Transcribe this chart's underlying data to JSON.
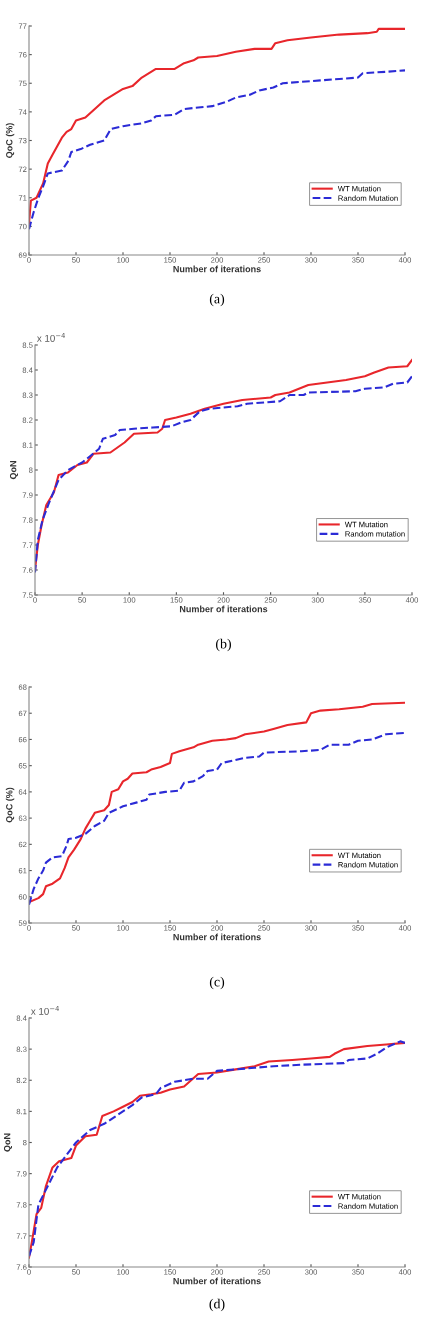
{
  "chart_data": [
    {
      "type": "line",
      "xlabel": "Number of iterations",
      "ylabel": "QoC (%)",
      "annotations": [
        "(a)"
      ],
      "xlim": [
        0,
        400
      ],
      "xticks": [
        0,
        50,
        100,
        150,
        200,
        250,
        300,
        350,
        400
      ],
      "ylim": [
        69,
        77
      ],
      "yticks": [
        69,
        70,
        71,
        72,
        73,
        74,
        75,
        76,
        77
      ],
      "legend": "lower right",
      "series": [
        {
          "name": "WT Mutation",
          "color": "#e8262b",
          "line_style": "solid",
          "x": [
            0,
            2,
            8,
            15,
            20,
            25,
            30,
            35,
            40,
            45,
            50,
            60,
            70,
            80,
            90,
            100,
            110,
            120,
            135,
            155,
            165,
            175,
            180,
            200,
            220,
            240,
            258,
            262,
            275,
            300,
            330,
            360,
            370,
            372,
            400
          ],
          "values": [
            70.1,
            70.9,
            71.0,
            71.5,
            72.2,
            72.5,
            72.8,
            73.1,
            73.3,
            73.4,
            73.7,
            73.8,
            74.1,
            74.4,
            74.6,
            74.8,
            74.9,
            75.2,
            75.5,
            75.5,
            75.7,
            75.8,
            75.9,
            75.95,
            76.1,
            76.2,
            76.2,
            76.4,
            76.5,
            76.6,
            76.7,
            76.75,
            76.8,
            76.9,
            76.9
          ]
        },
        {
          "name": "Random Mutation",
          "color": "#2b2bd6",
          "line_style": "dashed",
          "x": [
            0,
            5,
            10,
            15,
            20,
            35,
            42,
            45,
            55,
            65,
            80,
            87,
            100,
            120,
            130,
            135,
            155,
            165,
            180,
            195,
            210,
            220,
            235,
            245,
            260,
            270,
            290,
            310,
            330,
            350,
            355,
            380,
            400
          ],
          "values": [
            69.9,
            70.5,
            71.0,
            71.4,
            71.85,
            71.95,
            72.3,
            72.6,
            72.7,
            72.85,
            73.0,
            73.4,
            73.5,
            73.6,
            73.7,
            73.85,
            73.9,
            74.1,
            74.15,
            74.2,
            74.35,
            74.5,
            74.6,
            74.75,
            74.85,
            75.0,
            75.05,
            75.1,
            75.15,
            75.2,
            75.35,
            75.4,
            75.45
          ]
        }
      ]
    },
    {
      "type": "line",
      "xlabel": "Number of iterations",
      "ylabel": "QoN",
      "annotations": [
        "x 10$^{−4}$",
        "(b)"
      ],
      "xlim": [
        0,
        400
      ],
      "xticks": [
        0,
        50,
        100,
        150,
        200,
        250,
        300,
        350,
        400
      ],
      "ylim": [
        7.5,
        8.5
      ],
      "yticks": [
        7.5,
        7.6,
        7.7,
        7.8,
        7.9,
        8,
        8.1,
        8.2,
        8.3,
        8.4,
        8.5
      ],
      "legend": "lower right",
      "series": [
        {
          "name": "WT Mutation",
          "color": "#e8262b",
          "line_style": "solid",
          "x": [
            0,
            3,
            7,
            12,
            20,
            25,
            35,
            45,
            55,
            62,
            80,
            95,
            105,
            130,
            135,
            138,
            150,
            165,
            180,
            200,
            220,
            250,
            255,
            270,
            290,
            310,
            330,
            350,
            360,
            375,
            395,
            400
          ],
          "values": [
            7.6,
            7.7,
            7.78,
            7.86,
            7.91,
            7.98,
            7.99,
            8.02,
            8.03,
            8.065,
            8.07,
            8.11,
            8.145,
            8.15,
            8.165,
            8.2,
            8.21,
            8.225,
            8.245,
            8.265,
            8.28,
            8.29,
            8.3,
            8.31,
            8.34,
            8.35,
            8.36,
            8.375,
            8.39,
            8.41,
            8.415,
            8.44
          ]
        },
        {
          "name": "Random mutation",
          "color": "#2b2bd6",
          "line_style": "dashed",
          "x": [
            0,
            3,
            8,
            15,
            25,
            35,
            50,
            60,
            68,
            72,
            85,
            90,
            105,
            125,
            145,
            155,
            165,
            175,
            185,
            200,
            215,
            225,
            260,
            270,
            285,
            290,
            340,
            350,
            370,
            380,
            395,
            400
          ],
          "values": [
            7.59,
            7.72,
            7.8,
            7.87,
            7.96,
            8.0,
            8.03,
            8.06,
            8.085,
            8.125,
            8.14,
            8.16,
            8.165,
            8.17,
            8.175,
            8.19,
            8.2,
            8.235,
            8.245,
            8.25,
            8.255,
            8.265,
            8.275,
            8.3,
            8.3,
            8.31,
            8.315,
            8.325,
            8.33,
            8.345,
            8.35,
            8.375
          ]
        }
      ]
    },
    {
      "type": "line",
      "xlabel": "Number of iterations",
      "ylabel": "QoC (%)",
      "annotations": [
        "(c)"
      ],
      "xlim": [
        0,
        400
      ],
      "xticks": [
        0,
        50,
        100,
        150,
        200,
        250,
        300,
        350,
        400
      ],
      "ylim": [
        59,
        68
      ],
      "yticks": [
        59,
        60,
        61,
        62,
        63,
        64,
        65,
        66,
        67,
        68
      ],
      "legend": "lower right",
      "series": [
        {
          "name": "WT Mutation",
          "color": "#e8262b",
          "line_style": "solid",
          "x": [
            0,
            10,
            15,
            18,
            25,
            33,
            38,
            42,
            48,
            55,
            60,
            65,
            70,
            80,
            85,
            88,
            95,
            100,
            105,
            110,
            125,
            130,
            140,
            150,
            152,
            160,
            175,
            180,
            195,
            210,
            220,
            230,
            250,
            260,
            275,
            295,
            300,
            310,
            330,
            355,
            365,
            400
          ],
          "values": [
            59.8,
            59.95,
            60.1,
            60.4,
            60.5,
            60.7,
            61.1,
            61.5,
            61.8,
            62.2,
            62.6,
            62.9,
            63.2,
            63.3,
            63.5,
            64.0,
            64.1,
            64.4,
            64.5,
            64.7,
            64.75,
            64.85,
            64.95,
            65.1,
            65.45,
            65.55,
            65.7,
            65.8,
            65.95,
            66.0,
            66.05,
            66.2,
            66.3,
            66.4,
            66.55,
            66.65,
            67.0,
            67.1,
            67.15,
            67.25,
            67.35,
            67.4
          ]
        },
        {
          "name": "Random Mutation",
          "color": "#2b2bd6",
          "line_style": "dashed",
          "x": [
            0,
            5,
            10,
            15,
            18,
            25,
            35,
            40,
            42,
            50,
            60,
            70,
            80,
            85,
            100,
            115,
            125,
            128,
            145,
            160,
            165,
            175,
            185,
            190,
            200,
            205,
            230,
            245,
            250,
            290,
            310,
            320,
            340,
            350,
            365,
            380,
            400
          ],
          "values": [
            59.7,
            60.3,
            60.7,
            61.0,
            61.3,
            61.5,
            61.55,
            61.95,
            62.2,
            62.25,
            62.4,
            62.7,
            62.9,
            63.2,
            63.45,
            63.6,
            63.7,
            63.9,
            64.0,
            64.05,
            64.35,
            64.4,
            64.6,
            64.8,
            64.85,
            65.1,
            65.3,
            65.35,
            65.5,
            65.55,
            65.6,
            65.8,
            65.8,
            65.95,
            66.0,
            66.2,
            66.25
          ]
        }
      ]
    },
    {
      "type": "line",
      "xlabel": "Number of iterations",
      "ylabel": "QoN",
      "annotations": [
        "x 10$^{−4}$",
        "(d)"
      ],
      "xlim": [
        0,
        400
      ],
      "xticks": [
        0,
        50,
        100,
        150,
        200,
        250,
        300,
        350,
        400
      ],
      "ylim": [
        7.6,
        8.4
      ],
      "yticks": [
        7.6,
        7.7,
        7.8,
        7.9,
        8,
        8.1,
        8.2,
        8.3,
        8.4
      ],
      "legend": "lower right",
      "series": [
        {
          "name": "WT Mutation",
          "color": "#e8262b",
          "line_style": "solid",
          "x": [
            0,
            3,
            8,
            13,
            18,
            25,
            32,
            45,
            50,
            60,
            72,
            78,
            90,
            100,
            110,
            118,
            130,
            140,
            150,
            165,
            180,
            200,
            220,
            240,
            255,
            280,
            300,
            320,
            325,
            335,
            360,
            380,
            400
          ],
          "values": [
            7.63,
            7.68,
            7.77,
            7.79,
            7.86,
            7.92,
            7.94,
            7.95,
            7.99,
            8.02,
            8.025,
            8.085,
            8.1,
            8.115,
            8.13,
            8.15,
            8.155,
            8.16,
            8.17,
            8.18,
            8.22,
            8.225,
            8.235,
            8.245,
            8.26,
            8.265,
            8.27,
            8.275,
            8.285,
            8.3,
            8.31,
            8.315,
            8.32
          ]
        },
        {
          "name": "Random Mutation",
          "color": "#2b2bd6",
          "line_style": "dashed",
          "x": [
            0,
            5,
            10,
            20,
            30,
            40,
            50,
            65,
            80,
            95,
            110,
            120,
            135,
            140,
            155,
            175,
            190,
            200,
            220,
            240,
            260,
            290,
            335,
            340,
            360,
            370,
            380,
            395,
            400
          ],
          "values": [
            7.635,
            7.68,
            7.8,
            7.86,
            7.92,
            7.96,
            8.0,
            8.04,
            8.06,
            8.09,
            8.12,
            8.145,
            8.155,
            8.175,
            8.195,
            8.205,
            8.205,
            8.23,
            8.235,
            8.24,
            8.245,
            8.25,
            8.255,
            8.265,
            8.27,
            8.285,
            8.305,
            8.325,
            8.32
          ]
        }
      ]
    }
  ]
}
